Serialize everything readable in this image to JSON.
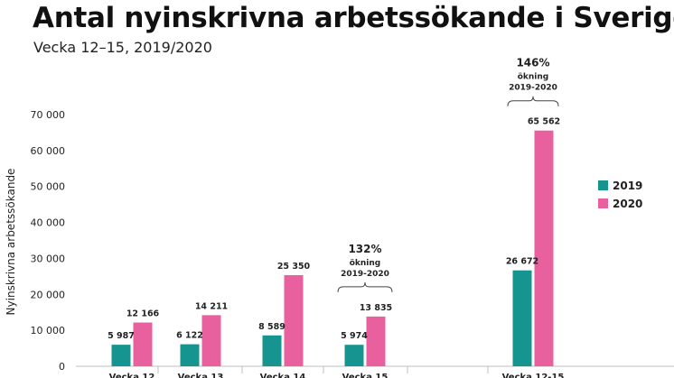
{
  "header": {
    "title": "Antal nyinskrivna arbetssökande i Sverige",
    "subtitle": "Vecka 12–15, 2019/2020"
  },
  "chart_data": {
    "type": "bar",
    "ylabel": "Nyinskrivna arbetssökande",
    "ylim": [
      0,
      70000
    ],
    "yticks": [
      0,
      10000,
      20000,
      30000,
      40000,
      50000,
      60000,
      70000
    ],
    "ytick_labels": [
      "0",
      "10 000",
      "20 000",
      "30 000",
      "40 000",
      "50 000",
      "60 000",
      "70 000"
    ],
    "grid": false,
    "legend_position": "right",
    "categories": [
      "Vecka 12",
      "Vecka 13",
      "Vecka 14",
      "Vecka 15",
      "Vecka 12-15"
    ],
    "series": [
      {
        "name": "2019",
        "color": "#16948f",
        "values": [
          5987,
          6122,
          8589,
          5974,
          26672
        ],
        "labels": [
          "5 987",
          "6 122",
          "8 589",
          "5 974",
          "26 672"
        ]
      },
      {
        "name": "2020",
        "color": "#e8609e",
        "values": [
          12166,
          14211,
          25350,
          13835,
          65562
        ],
        "labels": [
          "12 166",
          "14 211",
          "25 350",
          "13 835",
          "65 562"
        ]
      }
    ],
    "annotations": [
      {
        "category_index": 3,
        "percent": "132%",
        "line1": "ökning",
        "line2": "2019-2020"
      },
      {
        "category_index": 4,
        "percent": "146%",
        "line1": "ökning",
        "line2": "2019-2020"
      }
    ]
  }
}
